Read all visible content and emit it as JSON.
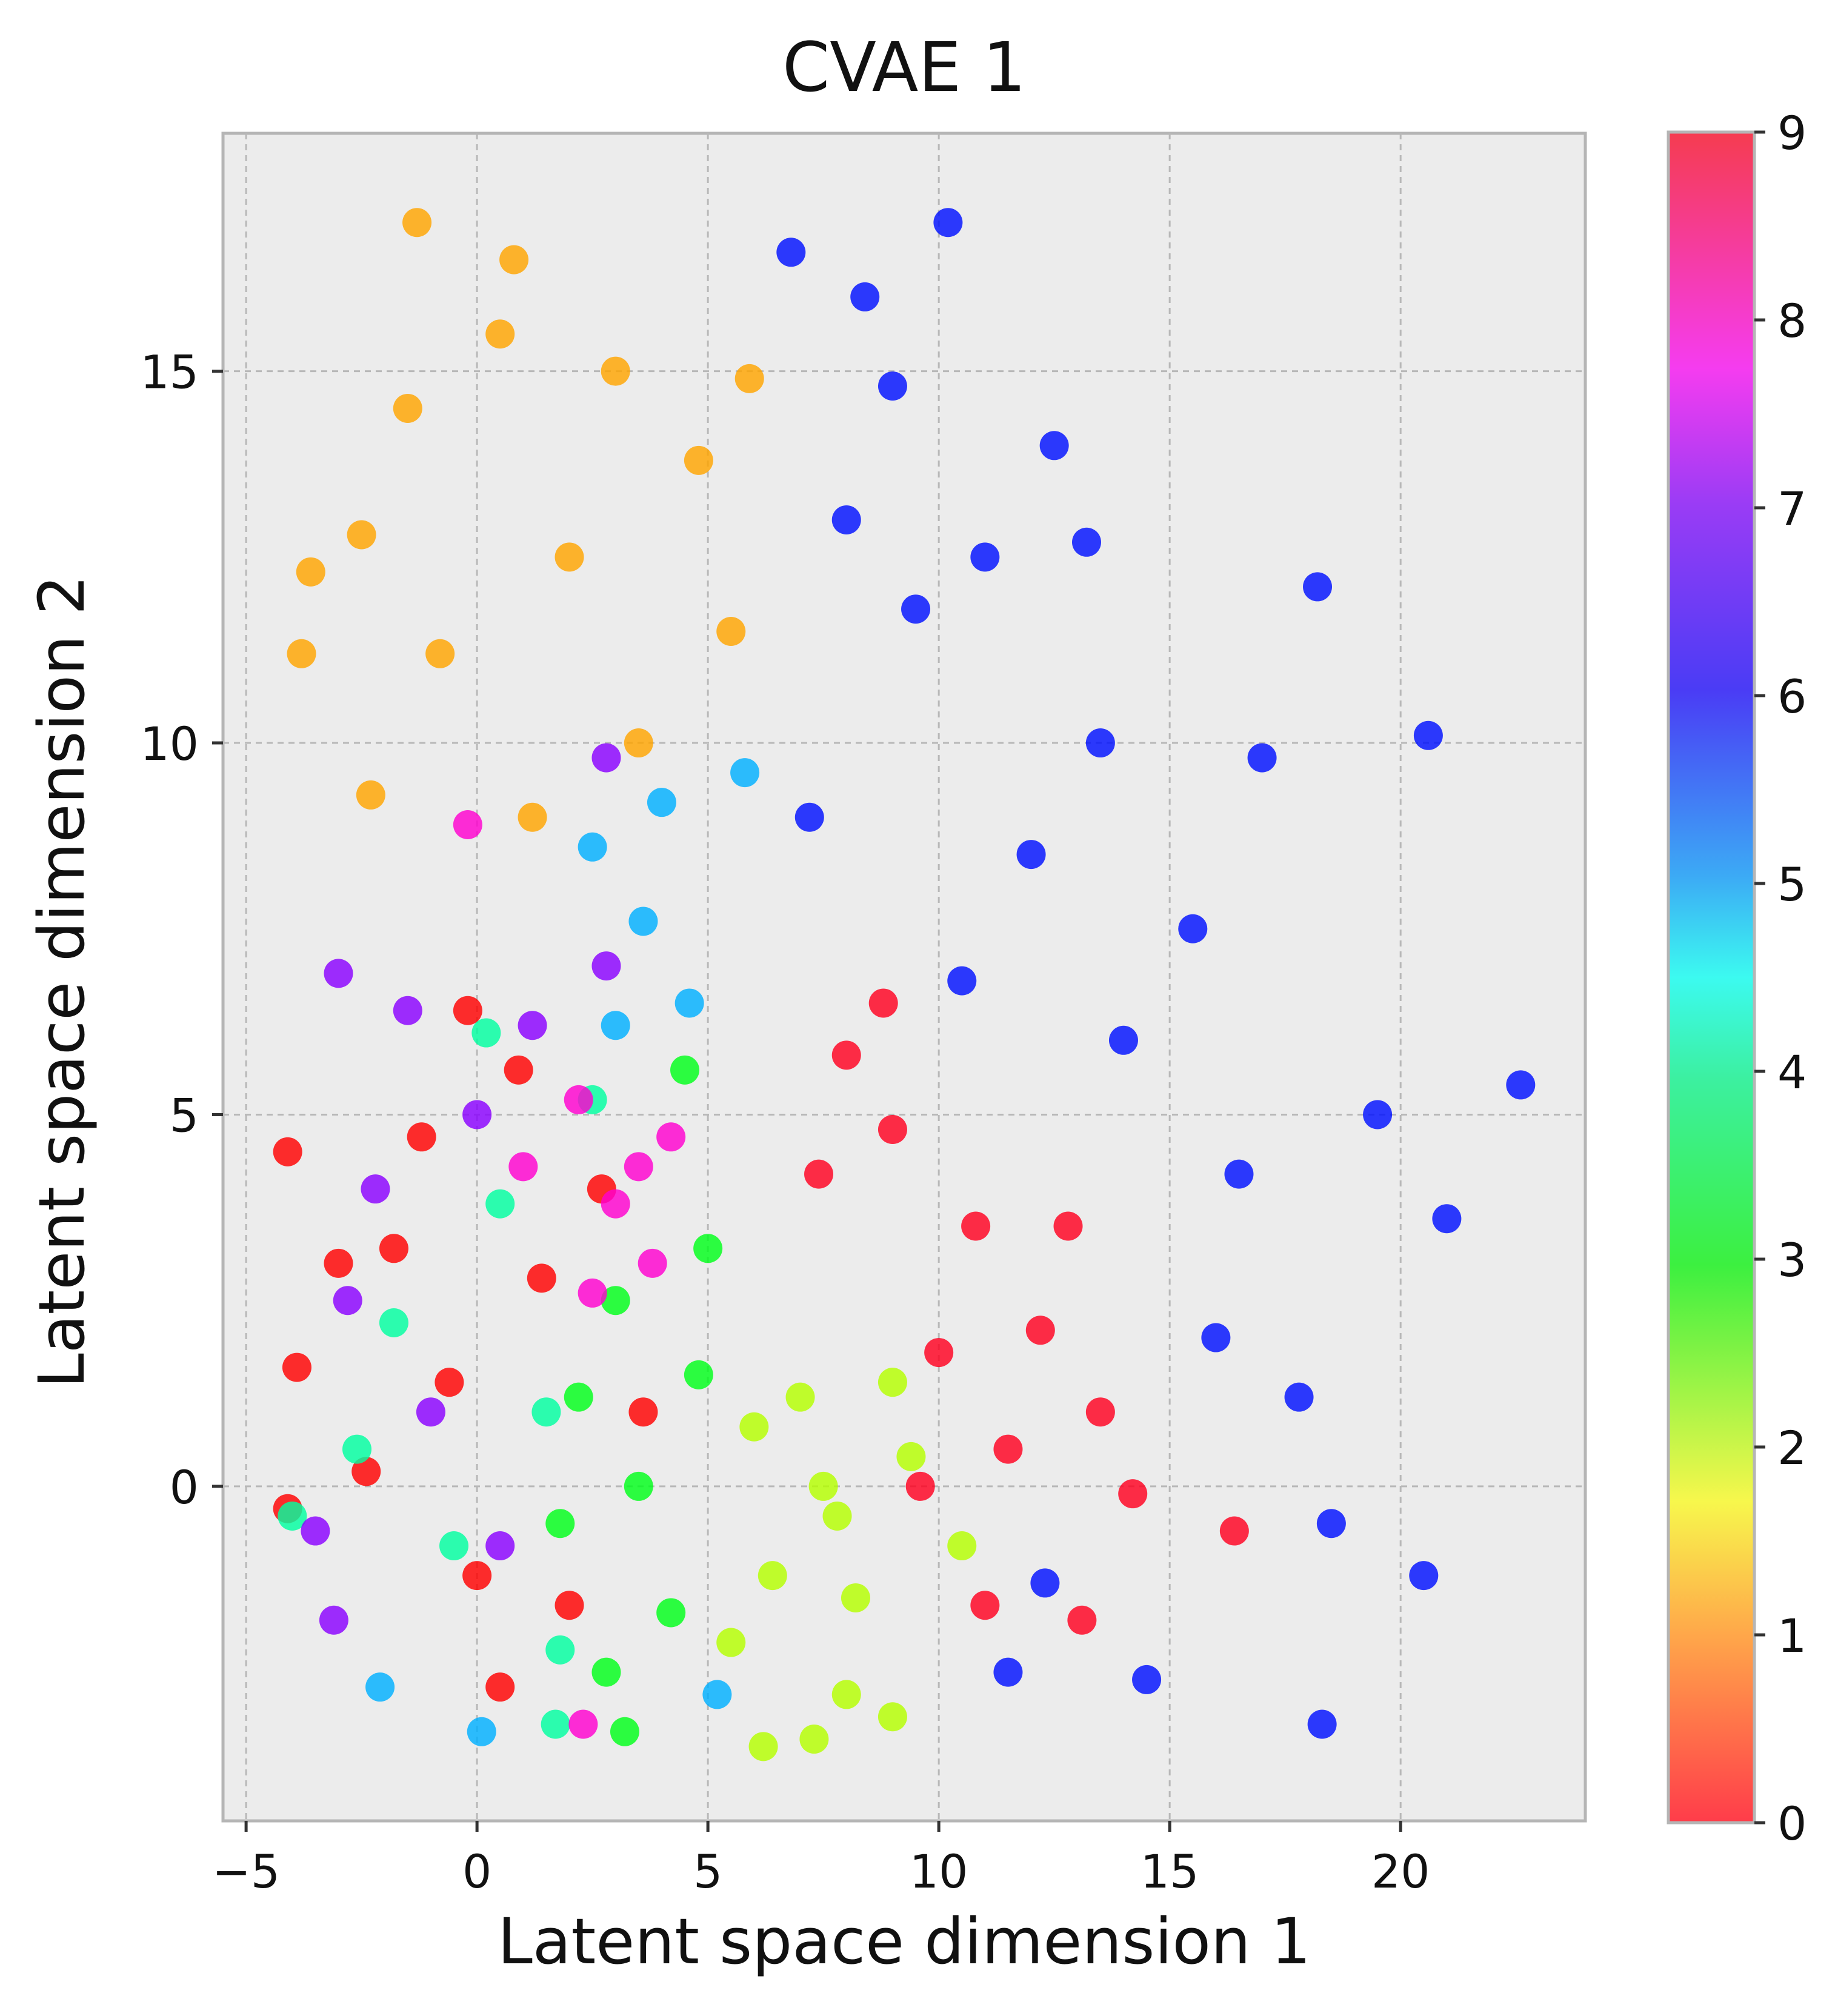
{
  "chart_data": {
    "type": "scatter",
    "title": "CVAE 1",
    "xlabel": "Latent space dimension 1",
    "ylabel": "Latent space dimension 2",
    "xlim": [
      -5.5,
      24.0
    ],
    "ylim": [
      -4.5,
      18.2
    ],
    "xticks": [
      -5,
      0,
      5,
      10,
      15,
      20
    ],
    "xtick_labels": [
      "−5",
      "0",
      "5",
      "10",
      "15",
      "20"
    ],
    "yticks": [
      0,
      5,
      10,
      15
    ],
    "ytick_labels": [
      "0",
      "5",
      "10",
      "15"
    ],
    "grid": true,
    "background": "#ececec",
    "colorbar": {
      "label": "",
      "min": 0,
      "max": 9,
      "ticks": [
        0,
        1,
        2,
        3,
        4,
        5,
        6,
        7,
        8,
        9
      ],
      "tick_labels": [
        "0",
        "1",
        "2",
        "3",
        "4",
        "5",
        "6",
        "7",
        "8",
        "9"
      ],
      "colormap": "hsv",
      "colors": [
        "#ff0000",
        "#ffa500",
        "#b5ff00",
        "#00ff1a",
        "#00ffa0",
        "#00b0ff",
        "#0010ff",
        "#8a00ff",
        "#ff00d0",
        "#ff0020"
      ]
    },
    "series": [
      {
        "label": 0,
        "color": "#ff0000",
        "points": [
          [
            -1.8,
            3.2
          ],
          [
            -0.6,
            1.4
          ],
          [
            0.9,
            5.6
          ],
          [
            2.0,
            -1.6
          ],
          [
            -2.4,
            0.2
          ],
          [
            0.5,
            -2.7
          ],
          [
            1.4,
            2.8
          ],
          [
            -0.2,
            6.4
          ],
          [
            2.7,
            4.0
          ],
          [
            0.0,
            -1.2
          ],
          [
            -1.2,
            4.7
          ],
          [
            3.6,
            1.0
          ],
          [
            -3.0,
            3.0
          ],
          [
            -4.1,
            4.5
          ],
          [
            -4.1,
            -0.3
          ],
          [
            -3.9,
            1.6
          ]
        ]
      },
      {
        "label": 1,
        "color": "#ffa500",
        "points": [
          [
            2.0,
            12.5
          ],
          [
            -1.5,
            14.5
          ],
          [
            3.5,
            10.0
          ],
          [
            0.5,
            15.5
          ],
          [
            -2.5,
            12.8
          ],
          [
            4.8,
            13.8
          ],
          [
            1.2,
            9.0
          ],
          [
            -0.8,
            11.2
          ],
          [
            3.0,
            15.0
          ],
          [
            5.5,
            11.5
          ],
          [
            -2.3,
            9.3
          ],
          [
            0.8,
            16.5
          ],
          [
            -1.3,
            17.0
          ],
          [
            -3.6,
            12.3
          ],
          [
            -3.8,
            11.2
          ],
          [
            5.9,
            14.9
          ]
        ]
      },
      {
        "label": 2,
        "color": "#b5ff00",
        "points": [
          [
            7.5,
            0.0
          ],
          [
            8.2,
            -1.5
          ],
          [
            6.4,
            -1.2
          ],
          [
            9.4,
            0.4
          ],
          [
            7.0,
            1.2
          ],
          [
            8.0,
            -2.8
          ],
          [
            6.0,
            0.8
          ],
          [
            10.5,
            -0.8
          ],
          [
            7.8,
            -0.4
          ],
          [
            5.5,
            -2.1
          ],
          [
            9.0,
            1.4
          ],
          [
            6.2,
            -3.5
          ],
          [
            7.3,
            -3.4
          ],
          [
            9.0,
            -3.1
          ]
        ]
      },
      {
        "label": 3,
        "color": "#00ff1a",
        "points": [
          [
            3.5,
            0.0
          ],
          [
            4.8,
            1.5
          ],
          [
            2.2,
            1.2
          ],
          [
            4.2,
            -1.7
          ],
          [
            3.0,
            2.5
          ],
          [
            1.8,
            -0.5
          ],
          [
            5.0,
            3.2
          ],
          [
            2.8,
            -2.5
          ],
          [
            4.5,
            5.6
          ],
          [
            3.2,
            -3.3
          ]
        ]
      },
      {
        "label": 4,
        "color": "#00ffa0",
        "points": [
          [
            -1.8,
            2.2
          ],
          [
            0.5,
            3.8
          ],
          [
            -0.5,
            -0.8
          ],
          [
            1.5,
            1.0
          ],
          [
            -2.6,
            0.5
          ],
          [
            0.2,
            6.1
          ],
          [
            1.8,
            -2.2
          ],
          [
            2.5,
            5.2
          ],
          [
            -4.0,
            -0.4
          ],
          [
            1.7,
            -3.2
          ]
        ]
      },
      {
        "label": 5,
        "color": "#00b0ff",
        "points": [
          [
            3.6,
            7.6
          ],
          [
            2.5,
            8.6
          ],
          [
            4.6,
            6.5
          ],
          [
            3.0,
            6.2
          ],
          [
            5.8,
            9.6
          ],
          [
            4.0,
            9.2
          ],
          [
            -2.1,
            -2.7
          ],
          [
            0.1,
            -3.3
          ],
          [
            5.2,
            -2.8
          ]
        ]
      },
      {
        "label": 6,
        "color": "#0010ff",
        "points": [
          [
            9.5,
            11.8
          ],
          [
            12.0,
            8.5
          ],
          [
            8.0,
            13.0
          ],
          [
            14.0,
            6.0
          ],
          [
            11.0,
            12.5
          ],
          [
            16.5,
            4.2
          ],
          [
            10.5,
            6.8
          ],
          [
            17.8,
            1.2
          ],
          [
            13.5,
            10.0
          ],
          [
            7.2,
            9.0
          ],
          [
            15.5,
            7.5
          ],
          [
            18.5,
            -0.5
          ],
          [
            12.5,
            14.0
          ],
          [
            17.0,
            9.8
          ],
          [
            9.0,
            14.8
          ],
          [
            10.2,
            17.0
          ],
          [
            6.8,
            16.6
          ],
          [
            18.2,
            12.1
          ],
          [
            20.6,
            10.1
          ],
          [
            22.6,
            5.4
          ],
          [
            21.0,
            3.6
          ],
          [
            20.5,
            -1.2
          ],
          [
            18.3,
            -3.2
          ],
          [
            14.5,
            -2.6
          ],
          [
            11.5,
            -2.5
          ],
          [
            8.4,
            16.0
          ],
          [
            13.2,
            12.7
          ],
          [
            16.0,
            2.0
          ],
          [
            12.3,
            -1.3
          ],
          [
            19.5,
            5.0
          ]
        ]
      },
      {
        "label": 7,
        "color": "#8a00ff",
        "points": [
          [
            -2.2,
            4.0
          ],
          [
            0.0,
            5.0
          ],
          [
            -1.0,
            1.0
          ],
          [
            1.2,
            6.2
          ],
          [
            -2.8,
            2.5
          ],
          [
            0.5,
            -0.8
          ],
          [
            2.8,
            7.0
          ],
          [
            -1.5,
            6.4
          ],
          [
            2.8,
            9.8
          ],
          [
            -3.0,
            6.9
          ],
          [
            -3.1,
            -1.8
          ],
          [
            -3.5,
            -0.6
          ]
        ]
      },
      {
        "label": 8,
        "color": "#ff00d0",
        "points": [
          [
            3.0,
            3.8
          ],
          [
            2.2,
            5.2
          ],
          [
            3.8,
            3.0
          ],
          [
            1.0,
            4.3
          ],
          [
            4.2,
            4.7
          ],
          [
            2.5,
            2.6
          ],
          [
            -0.2,
            8.9
          ],
          [
            2.3,
            -3.2
          ],
          [
            3.5,
            4.3
          ]
        ]
      },
      {
        "label": 9,
        "color": "#ff0020",
        "points": [
          [
            10.8,
            3.5
          ],
          [
            9.0,
            4.8
          ],
          [
            12.2,
            2.1
          ],
          [
            8.0,
            5.8
          ],
          [
            11.5,
            0.5
          ],
          [
            10.0,
            1.8
          ],
          [
            13.5,
            1.0
          ],
          [
            7.4,
            4.2
          ],
          [
            12.8,
            3.5
          ],
          [
            9.6,
            0.0
          ],
          [
            11.0,
            -1.6
          ],
          [
            14.2,
            -0.1
          ],
          [
            8.8,
            6.5
          ],
          [
            13.1,
            -1.8
          ],
          [
            16.4,
            -0.6
          ]
        ]
      }
    ]
  }
}
